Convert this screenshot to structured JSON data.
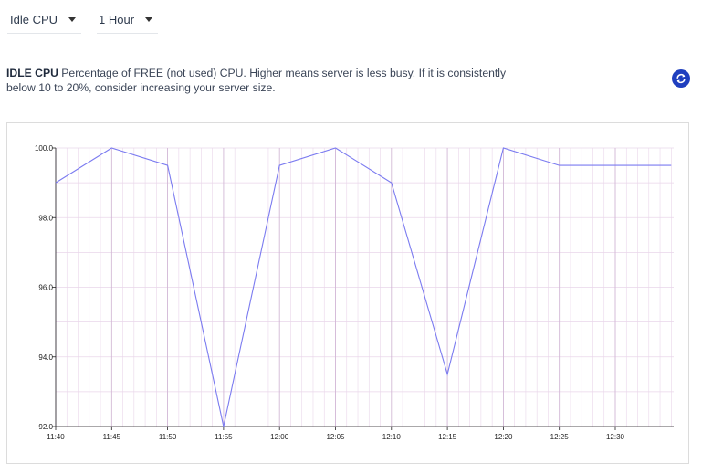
{
  "controls": {
    "metric": {
      "selected": "Idle CPU",
      "icon": "caret-down-icon"
    },
    "range": {
      "selected": "1 Hour",
      "icon": "caret-down-icon"
    }
  },
  "description": {
    "title": "IDLE CPU",
    "text": "Percentage of FREE (not used) CPU. Higher means server is less busy. If it is consistently below 10 to 20%, consider increasing your server size."
  },
  "refresh": {
    "icon": "refresh-icon",
    "color": "#1f3fbf"
  },
  "chart_data": {
    "type": "line",
    "title": "",
    "xlabel": "",
    "ylabel": "",
    "x": [
      "11:40",
      "11:45",
      "11:50",
      "11:55",
      "12:00",
      "12:05",
      "12:10",
      "12:15",
      "12:20",
      "12:25",
      "12:30",
      "12:35"
    ],
    "series": [
      {
        "values": [
          99.0,
          100.0,
          99.5,
          92.0,
          99.5,
          100.0,
          99.0,
          93.5,
          100.0,
          99.5,
          99.5,
          99.5
        ],
        "color": "#7b7bf0"
      }
    ],
    "x_tick_labels": [
      "11:40",
      "11:45",
      "11:50",
      "11:55",
      "12:00",
      "12:05",
      "12:10",
      "12:15",
      "12:20",
      "12:25",
      "12:30"
    ],
    "y_tick_labels": [
      "92.0",
      "94.0",
      "96.0",
      "98.0",
      "100.0"
    ],
    "ylim": [
      92,
      100
    ],
    "grid": true,
    "grid_color": "#e9d6ea",
    "legend": "none"
  }
}
